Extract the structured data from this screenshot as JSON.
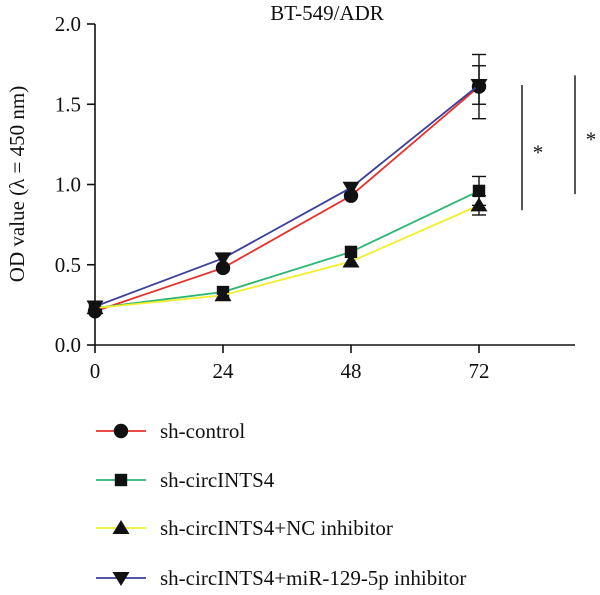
{
  "chart_data": {
    "type": "line",
    "title": "BT-549/ADR",
    "xlabel": "",
    "ylabel": "OD value (λ = 450 nm)",
    "x": [
      0,
      24,
      48,
      72
    ],
    "ylim": [
      0,
      2.0
    ],
    "yticks": [
      0.0,
      0.5,
      1.0,
      1.5,
      2.0
    ],
    "ytick_labels": [
      "0.0",
      "0.5",
      "1.0",
      "1.5",
      "2.0"
    ],
    "xtick_labels": [
      "0",
      "24",
      "48",
      "72"
    ],
    "grid": false,
    "legend_position": "bottom",
    "series": [
      {
        "name": "sh-control",
        "values": [
          0.21,
          0.48,
          0.93,
          1.61
        ],
        "error": [
          0,
          0,
          0,
          0.2
        ],
        "color": "#e8312a",
        "marker": "circle"
      },
      {
        "name": "sh-circINTS4",
        "values": [
          0.23,
          0.33,
          0.58,
          0.96
        ],
        "error": [
          0,
          0,
          0,
          0.09
        ],
        "color": "#2bb673",
        "marker": "square"
      },
      {
        "name": "sh-circINTS4+NC inhibitor",
        "values": [
          0.23,
          0.31,
          0.52,
          0.87
        ],
        "error": [
          0,
          0,
          0,
          0.06
        ],
        "color": "#f3ef2d",
        "marker": "triangle-up"
      },
      {
        "name": "sh-circINTS4+miR-129-5p inhibitor",
        "values": [
          0.24,
          0.54,
          0.98,
          1.62
        ],
        "error": [
          0,
          0,
          0,
          0.12
        ],
        "color": "#3b3f9b",
        "marker": "triangle-down"
      }
    ],
    "annotations": [
      {
        "text": "*",
        "bracket_y": [
          1.62,
          0.84
        ]
      },
      {
        "text": "*",
        "bracket_y": [
          1.68,
          0.94
        ]
      }
    ]
  }
}
